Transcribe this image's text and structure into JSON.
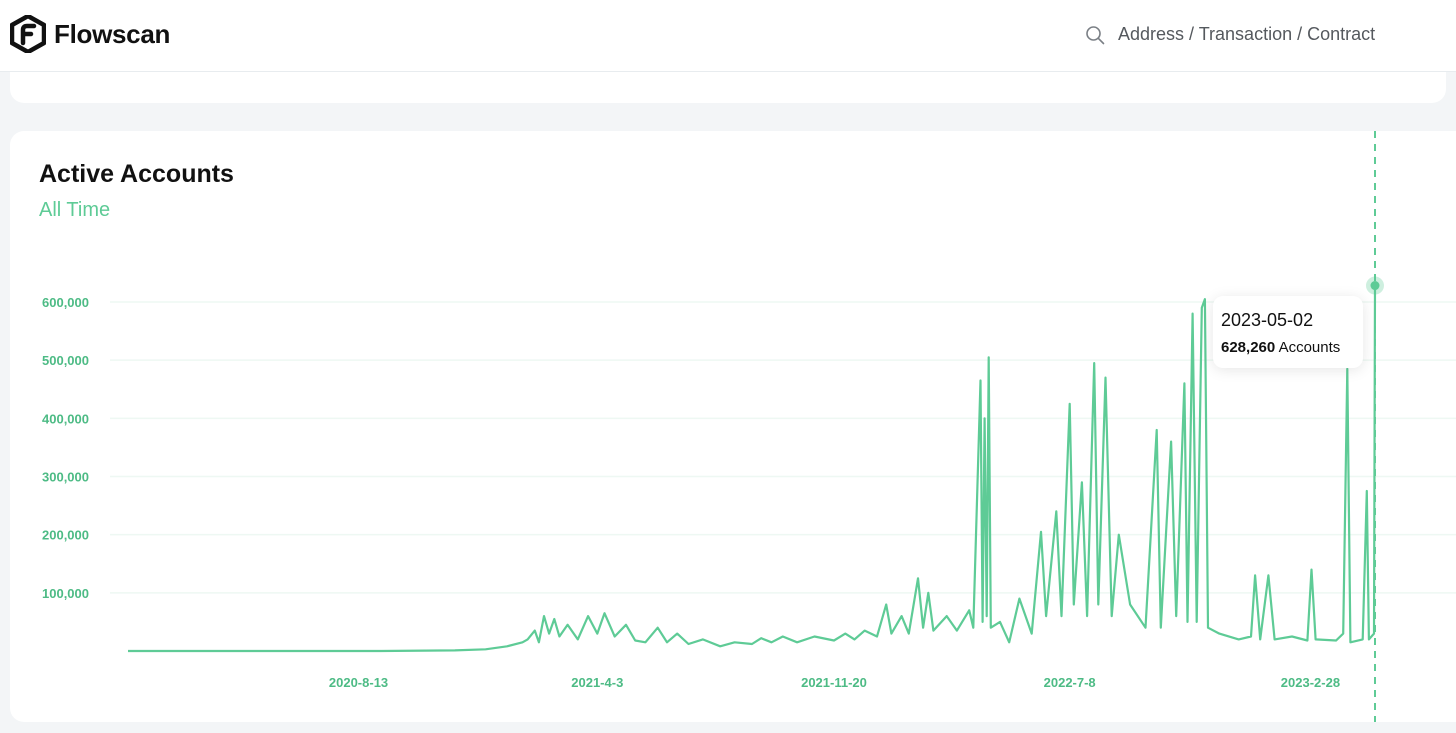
{
  "header": {
    "brand": "Flowscan",
    "search_placeholder": "Address / Transaction / Contract",
    "logo_icon": "flowscan-logo-icon",
    "search_icon": "search-icon"
  },
  "panel": {
    "title": "Active Accounts",
    "subtitle": "All Time"
  },
  "tooltip": {
    "date": "2023-05-02",
    "value": "628,260",
    "unit": "Accounts"
  },
  "colors": {
    "line": "#5ecb96",
    "tick": "#4dbb85",
    "grid": "#eef8f3"
  },
  "chart_data": {
    "type": "line",
    "title": "Active Accounts",
    "subtitle": "All Time",
    "xlabel": "",
    "ylabel": "",
    "x_start": "2020-01-01",
    "x_end": "2023-05-02",
    "x_ticks": [
      "2020-8-13",
      "2021-4-3",
      "2021-11-20",
      "2022-7-8",
      "2023-2-28"
    ],
    "y_ticks": [
      100000,
      200000,
      300000,
      400000,
      500000,
      600000
    ],
    "y_tick_labels": [
      "100,000",
      "200,000",
      "300,000",
      "400,000",
      "500,000",
      "600,000"
    ],
    "ylim": [
      0,
      600000
    ],
    "grid": true,
    "highlight": {
      "date": "2023-05-02",
      "value": 628260
    },
    "series": [
      {
        "values": [
          [
            "2020-01-01",
            0
          ],
          [
            "2020-03-01",
            0
          ],
          [
            "2020-06-01",
            0
          ],
          [
            "2020-09-01",
            0
          ],
          [
            "2020-11-15",
            1000
          ],
          [
            "2020-12-15",
            3000
          ],
          [
            "2021-01-05",
            8000
          ],
          [
            "2021-01-20",
            15000
          ],
          [
            "2021-01-25",
            20000
          ],
          [
            "2021-02-01",
            35000
          ],
          [
            "2021-02-05",
            15000
          ],
          [
            "2021-02-10",
            60000
          ],
          [
            "2021-02-15",
            30000
          ],
          [
            "2021-02-20",
            55000
          ],
          [
            "2021-02-25",
            25000
          ],
          [
            "2021-03-05",
            45000
          ],
          [
            "2021-03-15",
            20000
          ],
          [
            "2021-03-25",
            60000
          ],
          [
            "2021-04-03",
            30000
          ],
          [
            "2021-04-10",
            65000
          ],
          [
            "2021-04-20",
            25000
          ],
          [
            "2021-05-01",
            45000
          ],
          [
            "2021-05-10",
            18000
          ],
          [
            "2021-05-20",
            15000
          ],
          [
            "2021-06-01",
            40000
          ],
          [
            "2021-06-10",
            15000
          ],
          [
            "2021-06-20",
            30000
          ],
          [
            "2021-07-01",
            12000
          ],
          [
            "2021-07-15",
            20000
          ],
          [
            "2021-08-01",
            8000
          ],
          [
            "2021-08-15",
            15000
          ],
          [
            "2021-09-01",
            12000
          ],
          [
            "2021-09-10",
            22000
          ],
          [
            "2021-09-20",
            15000
          ],
          [
            "2021-10-01",
            25000
          ],
          [
            "2021-10-15",
            15000
          ],
          [
            "2021-11-01",
            25000
          ],
          [
            "2021-11-20",
            18000
          ],
          [
            "2021-12-01",
            30000
          ],
          [
            "2021-12-10",
            20000
          ],
          [
            "2021-12-20",
            35000
          ],
          [
            "2022-01-01",
            25000
          ],
          [
            "2022-01-10",
            80000
          ],
          [
            "2022-01-15",
            30000
          ],
          [
            "2022-01-25",
            60000
          ],
          [
            "2022-02-01",
            30000
          ],
          [
            "2022-02-10",
            125000
          ],
          [
            "2022-02-15",
            40000
          ],
          [
            "2022-02-20",
            100000
          ],
          [
            "2022-02-25",
            35000
          ],
          [
            "2022-03-10",
            60000
          ],
          [
            "2022-03-20",
            35000
          ],
          [
            "2022-04-01",
            70000
          ],
          [
            "2022-04-05",
            40000
          ],
          [
            "2022-04-12",
            465000
          ],
          [
            "2022-04-14",
            50000
          ],
          [
            "2022-04-16",
            400000
          ],
          [
            "2022-04-18",
            60000
          ],
          [
            "2022-04-20",
            505000
          ],
          [
            "2022-04-22",
            40000
          ],
          [
            "2022-05-01",
            50000
          ],
          [
            "2022-05-10",
            15000
          ],
          [
            "2022-05-20",
            90000
          ],
          [
            "2022-06-01",
            30000
          ],
          [
            "2022-06-10",
            205000
          ],
          [
            "2022-06-15",
            60000
          ],
          [
            "2022-06-25",
            240000
          ],
          [
            "2022-06-30",
            60000
          ],
          [
            "2022-07-08",
            425000
          ],
          [
            "2022-07-12",
            80000
          ],
          [
            "2022-07-20",
            290000
          ],
          [
            "2022-07-25",
            60000
          ],
          [
            "2022-08-01",
            495000
          ],
          [
            "2022-08-05",
            80000
          ],
          [
            "2022-08-12",
            470000
          ],
          [
            "2022-08-18",
            60000
          ],
          [
            "2022-08-25",
            200000
          ],
          [
            "2022-09-05",
            80000
          ],
          [
            "2022-09-20",
            40000
          ],
          [
            "2022-10-01",
            380000
          ],
          [
            "2022-10-05",
            40000
          ],
          [
            "2022-10-15",
            360000
          ],
          [
            "2022-10-20",
            60000
          ],
          [
            "2022-10-28",
            460000
          ],
          [
            "2022-10-31",
            50000
          ],
          [
            "2022-11-05",
            580000
          ],
          [
            "2022-11-09",
            50000
          ],
          [
            "2022-11-14",
            590000
          ],
          [
            "2022-11-17",
            605000
          ],
          [
            "2022-11-20",
            40000
          ],
          [
            "2022-12-01",
            30000
          ],
          [
            "2022-12-20",
            20000
          ],
          [
            "2023-01-01",
            25000
          ],
          [
            "2023-01-05",
            130000
          ],
          [
            "2023-01-10",
            20000
          ],
          [
            "2023-01-18",
            130000
          ],
          [
            "2023-01-24",
            20000
          ],
          [
            "2023-02-10",
            25000
          ],
          [
            "2023-02-25",
            18000
          ],
          [
            "2023-03-01",
            140000
          ],
          [
            "2023-03-05",
            20000
          ],
          [
            "2023-03-25",
            18000
          ],
          [
            "2023-04-01",
            30000
          ],
          [
            "2023-04-05",
            485000
          ],
          [
            "2023-04-08",
            15000
          ],
          [
            "2023-04-20",
            20000
          ],
          [
            "2023-04-24",
            275000
          ],
          [
            "2023-04-26",
            20000
          ],
          [
            "2023-05-01",
            30000
          ],
          [
            "2023-05-02",
            628260
          ]
        ]
      }
    ]
  }
}
